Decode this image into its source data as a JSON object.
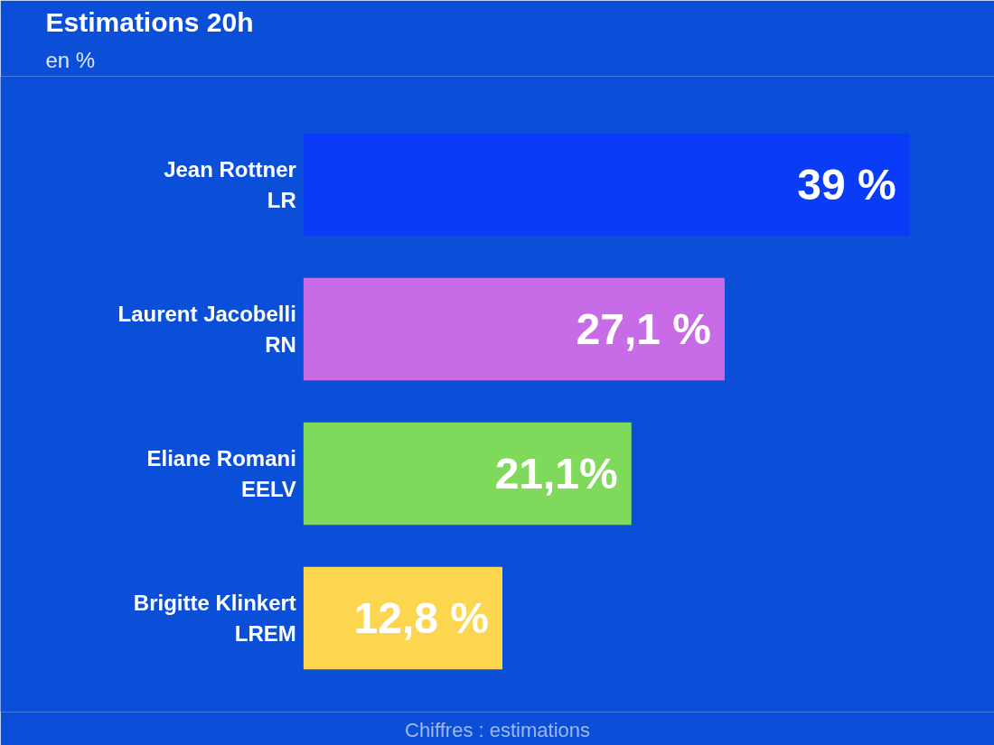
{
  "chart_data": {
    "type": "bar",
    "orientation": "horizontal",
    "title": "Estimations 20h",
    "subtitle": "en %",
    "categories": [
      "Jean Rottner\nLR",
      "Laurent Jacobelli\nRN",
      "Eliane Romani\nEELV",
      "Brigitte Klinkert\nLREM"
    ],
    "values": [
      39,
      27.1,
      21.1,
      12.8
    ],
    "colors": [
      "#0a3cf7",
      "#c86be6",
      "#7fd95a",
      "#fdd64f"
    ],
    "value_labels": [
      "39 %",
      "27,1 %",
      "21,1%",
      "12,8 %"
    ],
    "tick_labels": "y",
    "annotations": [
      "Chiffres : estimations"
    ]
  }
}
